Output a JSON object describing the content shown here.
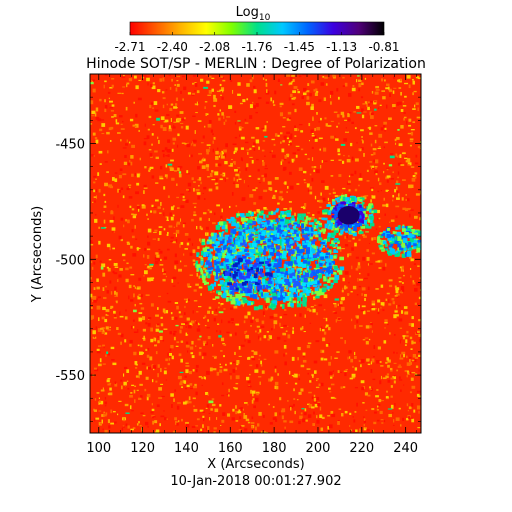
{
  "colorbar": {
    "title": "Log",
    "title_subscript": "10",
    "tick_labels": [
      "-2.71",
      "-2.40",
      "-2.08",
      "-1.76",
      "-1.45",
      "-1.13",
      "-0.81"
    ],
    "colors": [
      "#ff0000",
      "#ff5a00",
      "#ffb400",
      "#ffff00",
      "#7fff00",
      "#00e08a",
      "#00c8ff",
      "#0064ff",
      "#3c00e0",
      "#50007a",
      "#000000"
    ]
  },
  "title": "Hinode SOT/SP - MERLIN : Degree of Polarization",
  "x_axis": {
    "label": "X (Arcseconds)",
    "ticks": [
      100,
      120,
      140,
      160,
      180,
      200,
      220,
      240
    ],
    "range": [
      96,
      247
    ]
  },
  "y_axis": {
    "label": "Y (Arcseconds)",
    "ticks": [
      -450,
      -500,
      -550
    ],
    "range": [
      -575,
      -420
    ]
  },
  "timestamp": "10-Jan-2018 00:01:27.902",
  "map": {
    "background_color": "#ff2a00",
    "speckle_colors": [
      "#ff6a00",
      "#ffa000",
      "#ffcc00",
      "#ff1000"
    ],
    "regions": [
      {
        "name": "central-plage",
        "cx": 178,
        "cy": -500,
        "rx": 32,
        "ry": 16,
        "level": "cyan-blue"
      },
      {
        "name": "sunspot",
        "cx": 214,
        "cy": -481,
        "rx": 5,
        "ry": 4,
        "level": "indigo"
      },
      {
        "name": "east-patch",
        "cx": 238,
        "cy": -492,
        "rx": 9,
        "ry": 4,
        "level": "green-blue"
      }
    ]
  }
}
